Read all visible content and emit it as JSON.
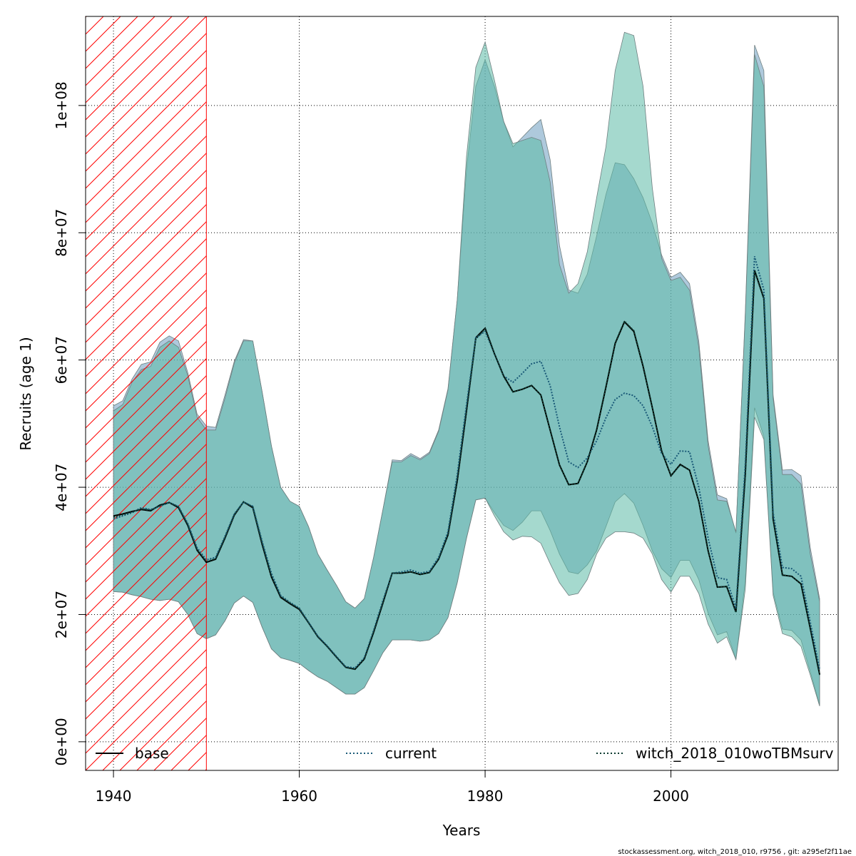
{
  "chart_data": {
    "type": "area",
    "xlabel": "Years",
    "ylabel": "Recruits (age 1)",
    "xlim": [
      1937,
      2018
    ],
    "ylim": [
      -4500000,
      114000000
    ],
    "x_ticks": [
      {
        "value": 1940,
        "label": "1940"
      },
      {
        "value": 1960,
        "label": "1960"
      },
      {
        "value": 1980,
        "label": "1980"
      },
      {
        "value": 2000,
        "label": "2000"
      }
    ],
    "y_ticks": [
      {
        "value": 0,
        "label": "0e+00"
      },
      {
        "value": 20000000,
        "label": "2e+07"
      },
      {
        "value": 40000000,
        "label": "4e+07"
      },
      {
        "value": 60000000,
        "label": "6e+07"
      },
      {
        "value": 80000000,
        "label": "8e+07"
      },
      {
        "value": 100000000,
        "label": "1e+08"
      }
    ],
    "grid": true,
    "legend_position": "bottom",
    "shaded_region": {
      "x_start": 1937,
      "x_end": 1950,
      "pattern": "red diagonal hatch"
    },
    "x": [
      1940,
      1941,
      1942,
      1943,
      1944,
      1945,
      1946,
      1947,
      1948,
      1949,
      1950,
      1951,
      1952,
      1953,
      1954,
      1955,
      1956,
      1957,
      1958,
      1959,
      1960,
      1961,
      1962,
      1963,
      1964,
      1965,
      1966,
      1967,
      1968,
      1969,
      1970,
      1971,
      1972,
      1973,
      1974,
      1975,
      1976,
      1977,
      1978,
      1979,
      1980,
      1981,
      1982,
      1983,
      1984,
      1985,
      1986,
      1987,
      1988,
      1989,
      1990,
      1991,
      1992,
      1993,
      1994,
      1995,
      1996,
      1997,
      1998,
      1999,
      2000,
      2001,
      2002,
      2003,
      2004,
      2005,
      2006,
      2007,
      2008,
      2009,
      2010,
      2011,
      2012,
      2013,
      2014,
      2015,
      2016
    ],
    "series": [
      {
        "name": "base",
        "line_color": "#000000",
        "line_style": "solid",
        "band_color": "#6c9cc0",
        "values": [
          35.5,
          35.8,
          36.2,
          36.5,
          36.3,
          37.2,
          37.6,
          36.8,
          34.0,
          30.1,
          28.2,
          28.7,
          32.0,
          35.6,
          37.7,
          36.8,
          31.0,
          25.9,
          22.7,
          21.7,
          20.8,
          18.7,
          16.5,
          15.0,
          13.3,
          11.7,
          11.4,
          13.0,
          17.2,
          21.8,
          26.5,
          26.5,
          26.7,
          26.3,
          26.6,
          28.7,
          32.5,
          41.0,
          52.0,
          63.5,
          65.0,
          61.0,
          57.5,
          55.0,
          55.4,
          56.0,
          54.5,
          49.0,
          43.5,
          40.4,
          40.6,
          44.0,
          49.0,
          55.7,
          62.6,
          66.0,
          64.5,
          59.0,
          52.5,
          45.7,
          41.8,
          43.6,
          42.7,
          37.8,
          30.0,
          24.3,
          24.4,
          20.4,
          42.0,
          74.1,
          69.7,
          35.0,
          26.2,
          26.0,
          24.8,
          17.8,
          10.6
        ],
        "lower": [
          23.6,
          23.5,
          23.1,
          22.8,
          22.4,
          22.2,
          22.4,
          22.0,
          20.0,
          17.0,
          16.2,
          16.8,
          19.0,
          21.8,
          22.9,
          21.9,
          18.0,
          14.6,
          13.2,
          12.8,
          12.3,
          11.2,
          10.2,
          9.5,
          8.5,
          7.5,
          7.5,
          8.5,
          11.2,
          14.0,
          16.0,
          16.0,
          16.0,
          15.8,
          16.0,
          17.0,
          19.5,
          25.0,
          32.0,
          38.0,
          38.3,
          36.0,
          34.0,
          33.2,
          34.5,
          36.3,
          36.3,
          33.2,
          29.5,
          26.7,
          26.4,
          27.8,
          30.0,
          33.8,
          37.7,
          39.0,
          37.5,
          34.0,
          30.0,
          27.2,
          25.8,
          28.5,
          28.5,
          25.5,
          20.2,
          16.8,
          17.3,
          13.0,
          25.3,
          52.5,
          48.0,
          23.5,
          17.7,
          17.5,
          16.0,
          11.0,
          5.8
        ],
        "upper": [
          52.8,
          53.6,
          57.0,
          59.3,
          59.7,
          62.8,
          63.8,
          63.0,
          58.0,
          51.5,
          49.6,
          49.4,
          54.5,
          59.8,
          63.2,
          63.0,
          55.0,
          46.5,
          40.0,
          37.8,
          37.0,
          33.8,
          29.5,
          27.0,
          24.6,
          22.0,
          21.0,
          22.5,
          29.0,
          36.5,
          44.3,
          44.2,
          45.3,
          44.5,
          45.5,
          49.0,
          55.5,
          69.5,
          90.0,
          103.0,
          107.2,
          103.0,
          97.5,
          93.5,
          95.0,
          96.5,
          97.8,
          91.5,
          78.0,
          71.0,
          70.5,
          73.5,
          79.5,
          86.0,
          91.0,
          90.7,
          88.5,
          85.5,
          81.5,
          76.5,
          73.0,
          73.8,
          72.0,
          63.0,
          47.3,
          38.8,
          38.2,
          32.8,
          67.5,
          109.5,
          105.5,
          54.5,
          42.7,
          42.8,
          41.8,
          30.5,
          22.5
        ]
      },
      {
        "name": "current",
        "line_color": "#1a5a78",
        "line_style": "dotted",
        "band_color": "#6c9cc0",
        "values": [
          35.0,
          35.5,
          36.0,
          36.8,
          36.5,
          37.0,
          37.6,
          37.0,
          34.3,
          30.5,
          28.6,
          29.0,
          32.3,
          35.8,
          37.7,
          37.0,
          31.5,
          26.5,
          23.0,
          21.9,
          21.0,
          18.8,
          16.6,
          15.1,
          13.4,
          11.8,
          11.6,
          13.2,
          17.5,
          22.2,
          26.5,
          26.7,
          27.0,
          26.5,
          26.8,
          29.0,
          33.0,
          42.0,
          53.0,
          63.5,
          64.5,
          61.0,
          57.5,
          56.5,
          57.9,
          59.4,
          59.8,
          56.0,
          49.5,
          44.0,
          43.1,
          44.6,
          47.3,
          50.9,
          53.8,
          54.8,
          54.4,
          52.8,
          49.5,
          45.3,
          43.6,
          45.7,
          45.6,
          40.0,
          32.0,
          25.8,
          25.5,
          21.0,
          43.5,
          76.3,
          71.0,
          36.0,
          27.4,
          27.2,
          26.0,
          18.8,
          11.4
        ],
        "lower": [
          23.6,
          23.5,
          23.2,
          22.9,
          22.5,
          22.3,
          22.5,
          22.0,
          20.0,
          17.2,
          16.3,
          16.8,
          19.0,
          21.8,
          22.9,
          21.9,
          18.0,
          14.6,
          13.2,
          12.8,
          12.3,
          11.2,
          10.2,
          9.5,
          8.5,
          7.5,
          7.5,
          8.5,
          11.2,
          14.0,
          16.0,
          16.0,
          16.0,
          15.8,
          16.0,
          17.0,
          19.5,
          25.0,
          32.0,
          38.0,
          38.3,
          36.0,
          34.0,
          33.2,
          34.5,
          36.3,
          36.3,
          33.2,
          29.5,
          26.7,
          26.4,
          27.8,
          30.0,
          33.8,
          37.7,
          39.0,
          37.5,
          34.0,
          30.0,
          27.2,
          25.8,
          28.5,
          28.5,
          25.5,
          20.2,
          16.8,
          17.3,
          13.0,
          25.3,
          52.5,
          48.0,
          23.5,
          17.7,
          17.5,
          16.0,
          11.0,
          5.8
        ],
        "upper": [
          52.8,
          53.6,
          57.0,
          59.3,
          59.7,
          62.8,
          63.8,
          63.0,
          58.0,
          51.5,
          49.6,
          49.4,
          54.5,
          59.8,
          63.2,
          63.0,
          55.0,
          46.5,
          40.0,
          37.8,
          37.0,
          33.8,
          29.5,
          27.0,
          24.6,
          22.0,
          21.0,
          22.5,
          29.0,
          36.5,
          44.3,
          44.2,
          45.3,
          44.5,
          45.5,
          49.0,
          55.5,
          69.5,
          90.0,
          103.0,
          107.2,
          103.0,
          97.5,
          93.5,
          95.0,
          96.5,
          97.8,
          91.5,
          78.0,
          71.0,
          70.5,
          73.5,
          79.5,
          86.0,
          91.0,
          90.7,
          88.5,
          85.5,
          81.5,
          76.5,
          73.0,
          73.8,
          72.0,
          63.0,
          47.3,
          38.8,
          38.2,
          32.8,
          67.5,
          109.5,
          105.5,
          54.5,
          42.7,
          42.8,
          41.8,
          30.5,
          22.5
        ]
      },
      {
        "name": "witch_2018_010woTBMsurv",
        "line_color": "#0b3b30",
        "line_style": "dotted",
        "band_color": "#5bbaa6",
        "values": [
          35.3,
          35.7,
          36.1,
          36.6,
          36.4,
          37.1,
          37.6,
          36.9,
          34.1,
          30.2,
          28.3,
          28.8,
          32.1,
          35.7,
          37.7,
          36.9,
          31.2,
          26.0,
          22.8,
          21.8,
          20.9,
          18.7,
          16.5,
          15.0,
          13.3,
          11.7,
          11.4,
          13.0,
          17.3,
          21.9,
          26.5,
          26.5,
          26.7,
          26.3,
          26.6,
          28.7,
          32.6,
          41.2,
          52.2,
          63.3,
          64.9,
          61.0,
          57.4,
          55.0,
          55.4,
          56.0,
          54.5,
          49.0,
          43.5,
          40.4,
          40.6,
          44.0,
          49.1,
          55.8,
          62.7,
          66.1,
          64.6,
          59.1,
          52.5,
          45.7,
          41.8,
          43.5,
          42.7,
          37.8,
          30.0,
          24.3,
          24.4,
          20.3,
          42.0,
          74.0,
          69.6,
          35.0,
          26.2,
          26.0,
          24.8,
          17.8,
          10.5
        ],
        "lower": [
          23.6,
          23.5,
          23.1,
          22.8,
          22.4,
          22.2,
          22.4,
          22.0,
          20.0,
          17.0,
          16.2,
          16.8,
          19.0,
          21.8,
          22.9,
          21.9,
          18.0,
          14.6,
          13.2,
          12.8,
          12.3,
          11.2,
          10.2,
          9.5,
          8.5,
          7.5,
          7.5,
          8.5,
          11.2,
          14.0,
          16.0,
          16.0,
          16.0,
          15.8,
          16.0,
          17.0,
          19.5,
          25.0,
          32.0,
          38.0,
          38.3,
          35.5,
          33.0,
          31.7,
          32.3,
          32.2,
          31.2,
          28.0,
          25.0,
          23.0,
          23.3,
          25.5,
          29.5,
          32.0,
          33.0,
          33.0,
          32.8,
          32.0,
          29.5,
          25.5,
          23.5,
          26.0,
          26.0,
          23.3,
          18.5,
          15.5,
          16.5,
          12.9,
          24.0,
          51.0,
          47.5,
          23.0,
          17.0,
          16.5,
          15.0,
          10.5,
          5.6
        ],
        "upper": [
          52.0,
          53.0,
          56.5,
          58.5,
          59.0,
          62.0,
          63.0,
          62.0,
          57.5,
          51.0,
          49.0,
          49.0,
          54.0,
          59.5,
          63.0,
          63.0,
          55.0,
          46.5,
          40.0,
          37.8,
          37.0,
          33.8,
          29.5,
          27.0,
          24.6,
          22.0,
          21.0,
          22.5,
          29.0,
          36.5,
          44.0,
          44.0,
          45.0,
          44.3,
          45.3,
          48.8,
          55.3,
          69.5,
          92.0,
          106.0,
          110.0,
          104.0,
          97.5,
          94.0,
          94.5,
          95.0,
          94.5,
          88.0,
          75.0,
          70.5,
          72.0,
          77.0,
          85.5,
          93.5,
          105.5,
          111.5,
          111.0,
          103.0,
          87.0,
          76.0,
          72.5,
          73.0,
          71.0,
          62.0,
          46.5,
          38.0,
          37.8,
          33.0,
          67.0,
          108.0,
          103.0,
          54.0,
          42.0,
          42.0,
          40.5,
          29.5,
          22.0
        ]
      }
    ]
  },
  "footer": "stockassessment.org, witch_2018_010, r9756 , git: a295ef2f11ae"
}
